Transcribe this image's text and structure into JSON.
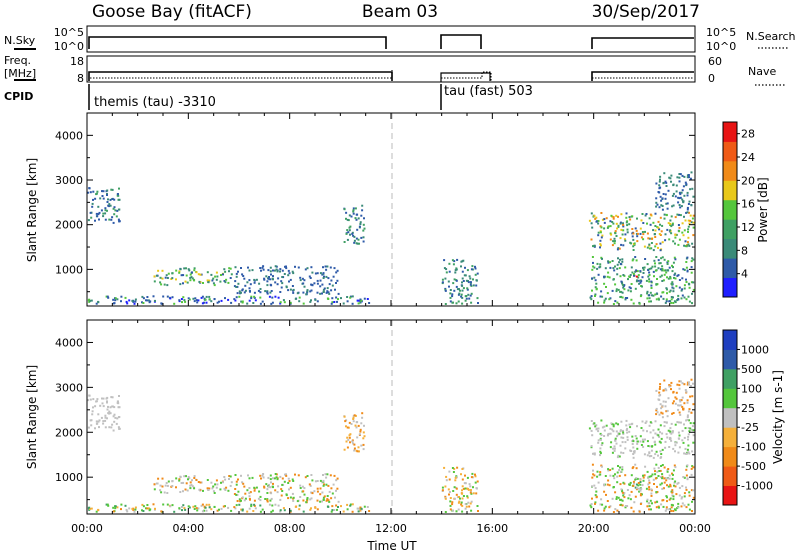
{
  "header": {
    "station": "Goose Bay (fitACF)",
    "beam": "Beam 03",
    "date": "30/Sep/2017"
  },
  "strip": {
    "nsky_label": "N.Sky",
    "nsky_ticks": [
      "10^5",
      "10^0"
    ],
    "nsearch_label": "N.Search",
    "nsearch_ticks": [
      "10^5",
      "10^0"
    ],
    "freq_label_1": "Freq.",
    "freq_label_2": "[MHz]",
    "freq_ticks": [
      "18",
      "8"
    ],
    "nave_label": "Nave",
    "nave_ticks": [
      "60",
      "0"
    ],
    "cpid_label": "CPID",
    "cpid_1": "themis (tau) -3310",
    "cpid_2": "tau (fast) 503"
  },
  "colors": {
    "power": [
      "#1f1fff",
      "#2e5aa8",
      "#3a8a78",
      "#3fa063",
      "#54c63c",
      "#e8c81a",
      "#f08a18",
      "#ef5a16",
      "#e81414"
    ],
    "velocity": [
      "#e81414",
      "#ef5a16",
      "#f08a18",
      "#f5b03a",
      "#c0c0c0",
      "#54c63c",
      "#3fa063",
      "#2e5aa8",
      "#1f3fc0"
    ]
  },
  "chart_data": [
    {
      "type": "heatmap",
      "quantity": "Power",
      "xlabel": "",
      "ylabel": "Slant Range [km]",
      "xlim": [
        0,
        24
      ],
      "ylim": [
        180,
        4500
      ],
      "yticks": [
        "1000",
        "2000",
        "3000",
        "4000"
      ],
      "colorbar": {
        "label": "Power [dB]",
        "ticks": [
          "4",
          "8",
          "12",
          "16",
          "20",
          "24",
          "28"
        ],
        "range": [
          0,
          30
        ]
      },
      "regions": [
        {
          "t": [
            0.0,
            1.4
          ],
          "r": [
            2000,
            2850
          ],
          "c": [
            1,
            1,
            2,
            3
          ]
        },
        {
          "t": [
            0.0,
            11.3
          ],
          "r": [
            200,
            420
          ],
          "c": [
            0,
            1,
            1,
            2,
            4
          ]
        },
        {
          "t": [
            2.6,
            5.8
          ],
          "r": [
            620,
            1050
          ],
          "c": [
            1,
            2,
            3,
            4,
            5
          ]
        },
        {
          "t": [
            5.8,
            10.0
          ],
          "r": [
            420,
            1100
          ],
          "c": [
            1,
            1,
            2
          ]
        },
        {
          "t": [
            10.1,
            11.0
          ],
          "r": [
            1500,
            2450
          ],
          "c": [
            1,
            2,
            3
          ]
        },
        {
          "t": [
            14.0,
            15.5
          ],
          "r": [
            200,
            1250
          ],
          "c": [
            1,
            2,
            3
          ]
        },
        {
          "t": [
            19.8,
            24.0
          ],
          "r": [
            1400,
            2300
          ],
          "c": [
            1,
            2,
            3,
            4,
            5,
            6
          ]
        },
        {
          "t": [
            22.4,
            24.0
          ],
          "r": [
            2300,
            3200
          ],
          "c": [
            1,
            2
          ]
        },
        {
          "t": [
            21.3,
            21.9
          ],
          "r": [
            700,
            1000
          ],
          "c": [
            3,
            4,
            6,
            8
          ]
        },
        {
          "t": [
            19.8,
            24.0
          ],
          "r": [
            200,
            1300
          ],
          "c": [
            1,
            2,
            3,
            4
          ]
        }
      ]
    },
    {
      "type": "heatmap",
      "quantity": "Velocity",
      "xlabel": "Time UT",
      "ylabel": "Slant Range [km]",
      "xlim": [
        0,
        24
      ],
      "ylim": [
        180,
        4500
      ],
      "xticks": [
        "00:00",
        "04:00",
        "08:00",
        "12:00",
        "16:00",
        "20:00",
        "00:00"
      ],
      "yticks": [
        "1000",
        "2000",
        "3000",
        "4000"
      ],
      "colorbar": {
        "label": "Velocity [m s-1]",
        "ticks": [
          "1000",
          "500",
          "100",
          "25",
          "-25",
          "-100",
          "-500",
          "-1000"
        ]
      },
      "regions": [
        {
          "t": [
            0.0,
            1.4
          ],
          "r": [
            2000,
            2850
          ],
          "c": [
            4
          ]
        },
        {
          "t": [
            0.0,
            11.3
          ],
          "r": [
            200,
            420
          ],
          "c": [
            4,
            5,
            2,
            3,
            6
          ]
        },
        {
          "t": [
            2.6,
            5.8
          ],
          "r": [
            620,
            1050
          ],
          "c": [
            4,
            4,
            5,
            2
          ]
        },
        {
          "t": [
            5.8,
            10.0
          ],
          "r": [
            420,
            1100
          ],
          "c": [
            4,
            2,
            5
          ]
        },
        {
          "t": [
            10.1,
            11.0
          ],
          "r": [
            1500,
            2450
          ],
          "c": [
            4,
            2,
            3
          ]
        },
        {
          "t": [
            14.0,
            15.5
          ],
          "r": [
            200,
            1250
          ],
          "c": [
            2,
            3,
            4,
            5
          ]
        },
        {
          "t": [
            19.8,
            24.0
          ],
          "r": [
            1400,
            2300
          ],
          "c": [
            4,
            4,
            4,
            5
          ]
        },
        {
          "t": [
            22.4,
            24.0
          ],
          "r": [
            2300,
            3200
          ],
          "c": [
            4,
            2
          ]
        },
        {
          "t": [
            21.3,
            21.9
          ],
          "r": [
            700,
            1000
          ],
          "c": [
            5,
            6
          ]
        },
        {
          "t": [
            19.8,
            24.0
          ],
          "r": [
            200,
            1300
          ],
          "c": [
            4,
            5,
            2
          ]
        }
      ]
    }
  ]
}
